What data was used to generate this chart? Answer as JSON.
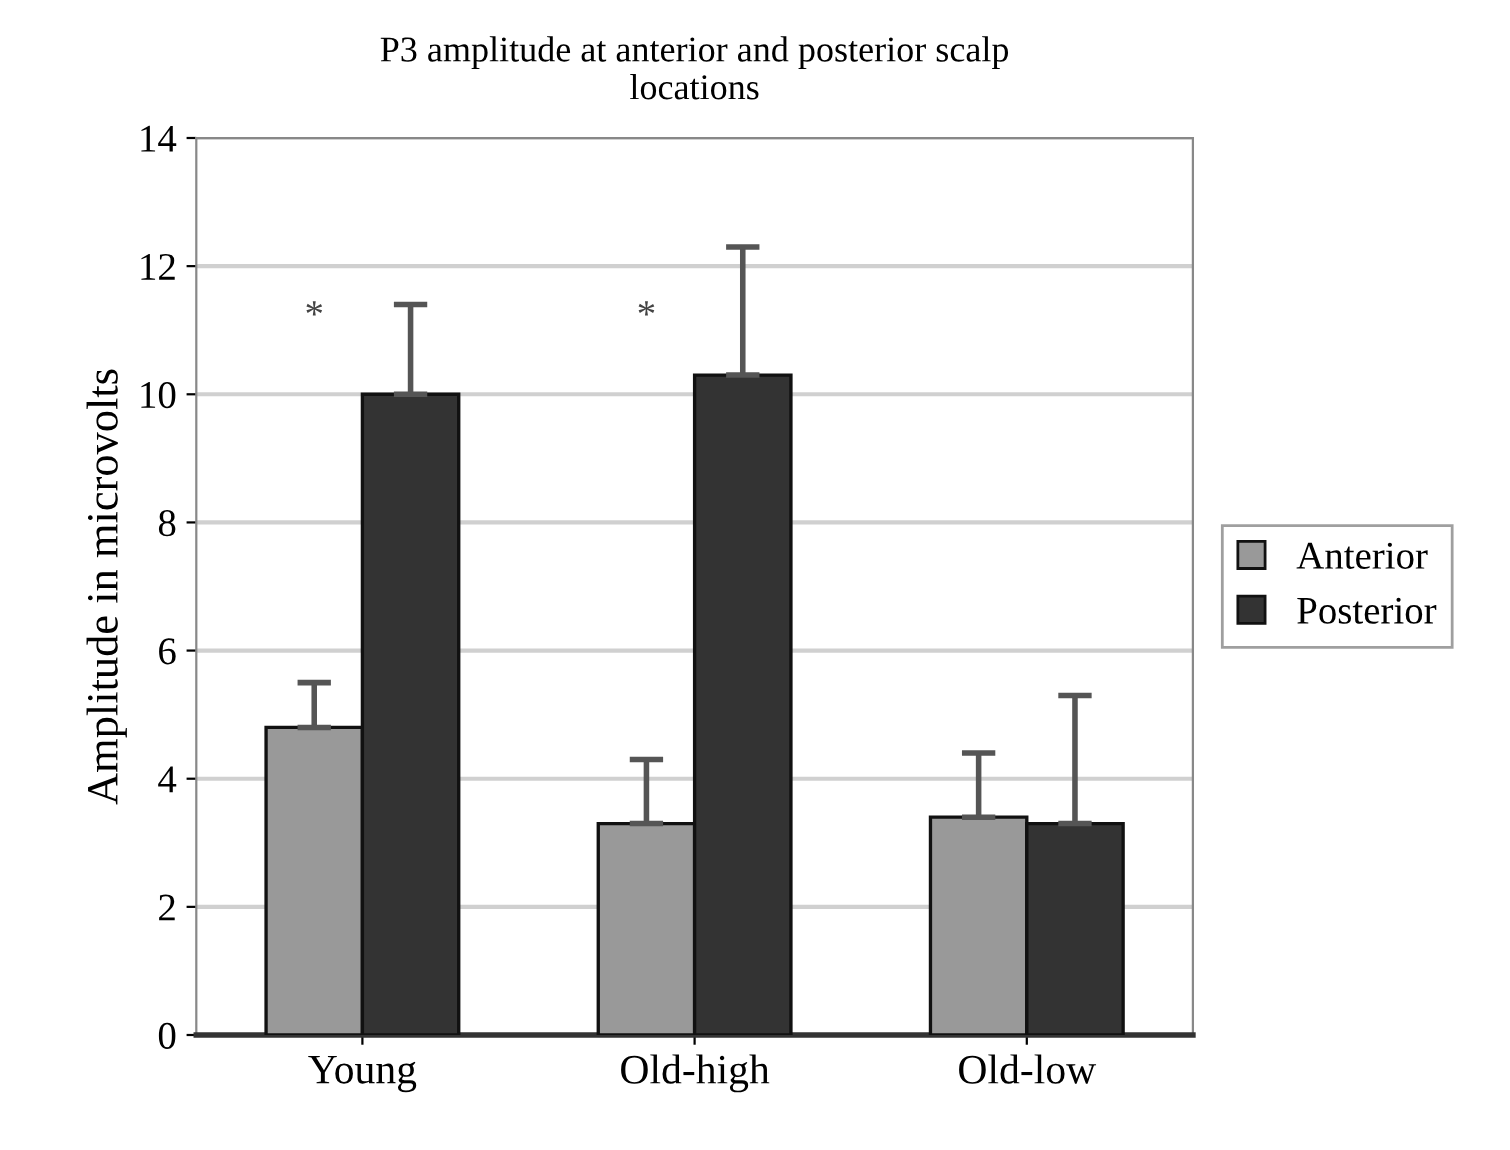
{
  "chart_data": {
    "type": "bar",
    "title": "P3 amplitude at anterior and posterior scalp\nlocations",
    "ylabel": "Amplitude in microvolts",
    "categories": [
      "Young",
      "Old-high",
      "Old-low"
    ],
    "series": [
      {
        "name": "Anterior",
        "color": "#999999",
        "values": [
          4.8,
          3.3,
          3.4
        ],
        "errors": [
          [
            4.8,
            5.5
          ],
          [
            3.3,
            4.3
          ],
          [
            3.4,
            4.4
          ]
        ]
      },
      {
        "name": "Posterior",
        "color": "#333333",
        "values": [
          10.0,
          10.3,
          3.3
        ],
        "errors": [
          [
            10.0,
            11.4
          ],
          [
            10.3,
            12.3
          ],
          [
            3.3,
            5.3
          ]
        ]
      }
    ],
    "annotations": [
      "*",
      "*"
    ],
    "ylim": [
      0,
      14
    ],
    "yticks": [
      0,
      2,
      4,
      6,
      8,
      10,
      12,
      14
    ],
    "grid": "y",
    "legend": "right"
  }
}
